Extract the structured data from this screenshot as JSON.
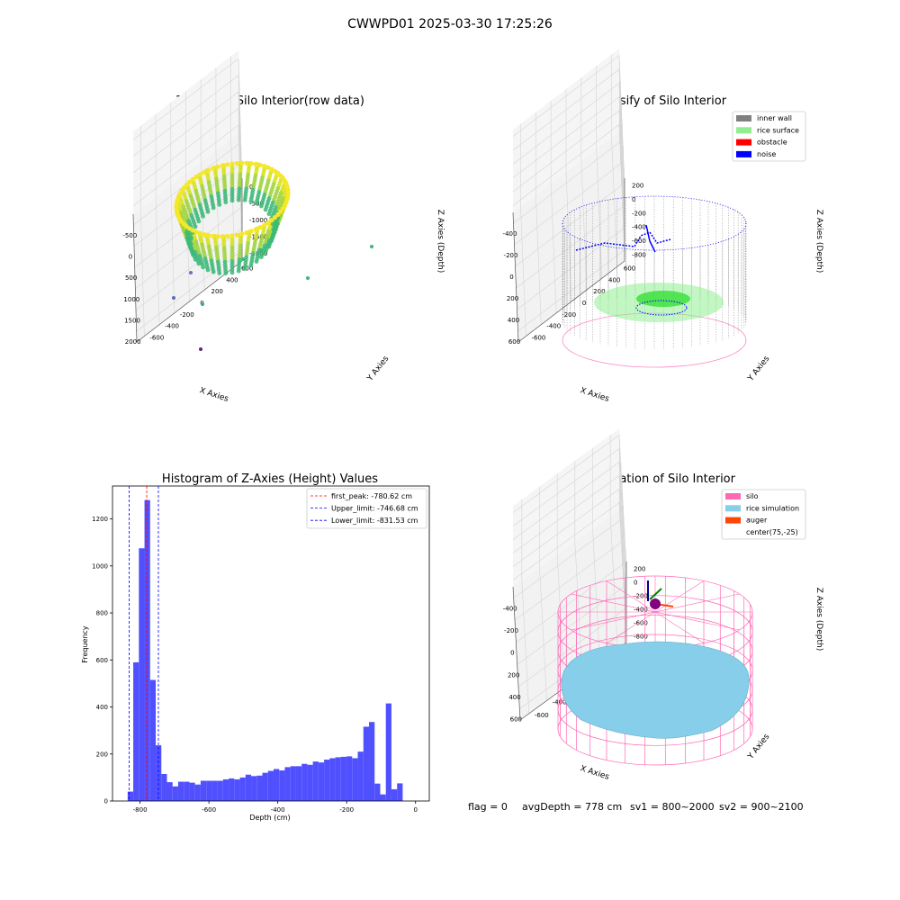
{
  "figure": {
    "suptitle": "CWWPD01 2025-03-30 17:25:26",
    "footer": {
      "flag": "flag = 0",
      "avg_depth": "avgDepth = 778 cm",
      "sv1": "sv1 = 800~2000",
      "sv2": "sv2 = 900~2100"
    }
  },
  "colors": {
    "hist_bar": "#5050ff",
    "first_peak": "#ff0000",
    "limit_line": "#0000ff",
    "inner_wall": "#808080",
    "rice_surface": "#90ee90",
    "obstacle": "#ff0000",
    "noise": "#0000ff",
    "silo": "#ff69b4",
    "rice_simulation": "#87ceeb",
    "auger": "#ff4500",
    "center": "#ffffff"
  },
  "chart_data": [
    {
      "type": "scatter",
      "projection": "3d",
      "title": "3D Plot of Silo Interior(row data)",
      "xlabel": "X Axies",
      "ylabel": "Y Axies",
      "zlabel": "Z Axies (Depth)",
      "x_ticks": [
        "-500",
        "0",
        "500",
        "1000",
        "1500",
        "2000"
      ],
      "y_ticks": [
        "-600",
        "-400",
        "-200",
        "0",
        "200",
        "400",
        "600"
      ],
      "z_ticks": [
        "-2000",
        "-1500",
        "-1000",
        "-500",
        "0"
      ],
      "grid": true,
      "outliers": [
        {
          "x": 2000,
          "y": 300,
          "z": -1100
        },
        {
          "x": 1450,
          "y": -300,
          "z": -1800
        },
        {
          "x": 400,
          "y": -200,
          "z": -1900
        },
        {
          "x": -200,
          "y": -400,
          "z": -1700
        },
        {
          "x": 300,
          "y": -600,
          "z": -2000
        }
      ]
    },
    {
      "type": "scatter",
      "projection": "3d",
      "title": "3D classify of Silo Interior",
      "xlabel": "X Axies",
      "ylabel": "Y Axies",
      "zlabel": "Z Axies (Depth)",
      "x_ticks": [
        "-400",
        "-200",
        "0",
        "200",
        "400",
        "600"
      ],
      "y_ticks": [
        "-600",
        "-400",
        "-200",
        "0",
        "200",
        "400",
        "600"
      ],
      "z_ticks": [
        "-800",
        "-600",
        "-400",
        "-200",
        "0",
        "200"
      ],
      "grid": true,
      "legend_position": "top-right",
      "legend": [
        {
          "label": "inner wall",
          "color": "#808080"
        },
        {
          "label": "rice surface",
          "color": "#90ee90"
        },
        {
          "label": "obstacle",
          "color": "#ff0000"
        },
        {
          "label": "noise",
          "color": "#0000ff"
        }
      ]
    },
    {
      "type": "bar",
      "title": "Histogram of Z-Axies (Height) Values",
      "xlabel": "Depth (cm)",
      "ylabel": "Frequency",
      "xlim": [
        -880,
        40
      ],
      "ylim": [
        0,
        1340
      ],
      "x_ticks": [
        -800,
        -600,
        -400,
        -200,
        0
      ],
      "y_ticks": [
        0,
        200,
        400,
        600,
        800,
        1000,
        1200
      ],
      "bin_width": 16.3,
      "bin_start": -836,
      "counts": [
        40,
        590,
        1075,
        1280,
        515,
        237,
        115,
        80,
        62,
        82,
        82,
        78,
        70,
        86,
        86,
        86,
        86,
        92,
        96,
        92,
        100,
        112,
        106,
        108,
        120,
        128,
        136,
        130,
        144,
        148,
        148,
        158,
        154,
        168,
        164,
        176,
        182,
        186,
        188,
        190,
        182,
        210,
        316,
        336,
        74,
        28,
        415,
        50,
        75
      ],
      "legend_position": "top-right",
      "vlines": [
        {
          "name": "first_peak: -780.62 cm",
          "x": -780.62,
          "color": "#ff0000"
        },
        {
          "name": "Upper_limit: -746.68 cm",
          "x": -746.68,
          "color": "#0000ff"
        },
        {
          "name": "Lower_limit: -831.53 cm",
          "x": -831.53,
          "color": "#0000ff"
        }
      ]
    },
    {
      "type": "scatter",
      "projection": "3d",
      "title": "3D simulation of Silo Interior",
      "xlabel": "X Axies",
      "ylabel": "Y Axies",
      "zlabel": "Z Axies (Depth)",
      "x_ticks": [
        "-400",
        "-200",
        "0",
        "200",
        "400",
        "600"
      ],
      "y_ticks": [
        "-600",
        "-400",
        "-200",
        "0",
        "200",
        "400"
      ],
      "z_ticks": [
        "-800",
        "-600",
        "-400",
        "-200",
        "0",
        "200"
      ],
      "grid": true,
      "legend_position": "top-right",
      "legend": [
        {
          "label": "silo",
          "color": "#ff69b4"
        },
        {
          "label": "rice simulation",
          "color": "#87ceeb"
        },
        {
          "label": "auger",
          "color": "#ff4500"
        },
        {
          "label": "center(75,-25)",
          "color": "#ffffff"
        }
      ]
    }
  ]
}
